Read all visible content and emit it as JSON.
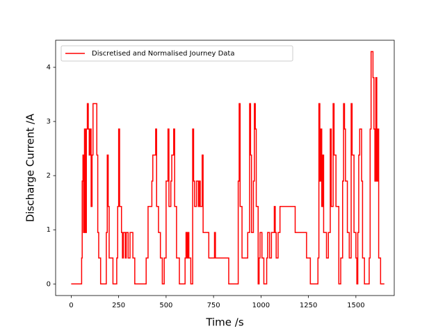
{
  "chart_data": {
    "type": "line",
    "drawstyle": "steps-post",
    "xlabel": "Time /s",
    "ylabel": "Discharge Current /A",
    "x": [
      0,
      55,
      58,
      62,
      65,
      70,
      75,
      80,
      85,
      90,
      95,
      100,
      105,
      110,
      115,
      135,
      140,
      145,
      155,
      185,
      190,
      195,
      200,
      220,
      240,
      245,
      250,
      255,
      265,
      270,
      275,
      285,
      290,
      300,
      310,
      325,
      335,
      395,
      405,
      425,
      430,
      445,
      450,
      460,
      470,
      480,
      490,
      500,
      510,
      515,
      525,
      530,
      540,
      545,
      555,
      570,
      600,
      605,
      610,
      615,
      620,
      630,
      640,
      645,
      650,
      660,
      670,
      675,
      680,
      690,
      695,
      725,
      755,
      760,
      830,
      880,
      885,
      890,
      900,
      930,
      940,
      945,
      950,
      960,
      965,
      970,
      975,
      985,
      990,
      995,
      1005,
      1015,
      1030,
      1035,
      1045,
      1055,
      1070,
      1075,
      1080,
      1090,
      1100,
      1180,
      1240,
      1260,
      1300,
      1305,
      1310,
      1315,
      1320,
      1325,
      1330,
      1345,
      1355,
      1365,
      1370,
      1380,
      1385,
      1395,
      1410,
      1420,
      1430,
      1435,
      1440,
      1445,
      1455,
      1465,
      1475,
      1480,
      1490,
      1500,
      1505,
      1510,
      1515,
      1520,
      1530,
      1535,
      1545,
      1570,
      1575,
      1580,
      1590,
      1595,
      1600,
      1605,
      1610,
      1615,
      1620,
      1630,
      1650
    ],
    "series": [
      {
        "name": "Discretised and Normalised Journey Data",
        "color": "#ff0000",
        "values": [
          0,
          0.48,
          1.9,
          2.38,
          0.95,
          2.86,
          0.95,
          2.86,
          3.33,
          2.86,
          2.38,
          2.86,
          1.43,
          2.38,
          3.33,
          2.38,
          0.95,
          0.48,
          0,
          0.95,
          2.38,
          1.43,
          0.48,
          0,
          0.48,
          1.43,
          2.86,
          1.43,
          0.95,
          0.48,
          0.95,
          0.48,
          0.95,
          0.48,
          0.95,
          0.48,
          0,
          0.48,
          1.43,
          1.9,
          2.38,
          2.86,
          1.43,
          0.95,
          0.48,
          0,
          0.48,
          1.9,
          2.86,
          1.43,
          1.9,
          2.38,
          2.86,
          1.43,
          0.48,
          0,
          0.48,
          0.95,
          0.48,
          0.95,
          0.48,
          0,
          2.86,
          1.9,
          1.43,
          1.9,
          1.43,
          1.9,
          1.43,
          2.38,
          0.95,
          0.48,
          0.95,
          0.48,
          0,
          1.9,
          3.33,
          1.43,
          0.48,
          0.95,
          3.33,
          2.38,
          0.95,
          1.9,
          3.33,
          2.86,
          1.43,
          0,
          0.48,
          0.95,
          0.48,
          0,
          0.48,
          0.95,
          0.48,
          0.95,
          1.43,
          0.95,
          0.48,
          0.95,
          1.43,
          0.95,
          0.48,
          0,
          0.48,
          3.33,
          1.9,
          2.86,
          1.43,
          2.38,
          0.95,
          0.48,
          0.95,
          2.86,
          1.43,
          3.33,
          2.38,
          1.43,
          0,
          0.48,
          1.9,
          3.33,
          2.86,
          1.9,
          0.95,
          0.48,
          3.33,
          2.38,
          0.95,
          0.48,
          0,
          0.95,
          2.38,
          2.86,
          1.9,
          0.48,
          0,
          0.48,
          2.86,
          4.29,
          3.81,
          2.86,
          1.9,
          3.81,
          1.9,
          2.86,
          0.48,
          0,
          0
        ]
      }
    ],
    "xlim": [
      -82,
      1702
    ],
    "xticks": [
      0,
      250,
      500,
      750,
      1000,
      1250,
      1500
    ],
    "ylim": [
      -0.214,
      4.5
    ],
    "yticks": [
      0,
      1,
      2,
      3,
      4
    ],
    "grid": false,
    "legend": "upper left"
  }
}
